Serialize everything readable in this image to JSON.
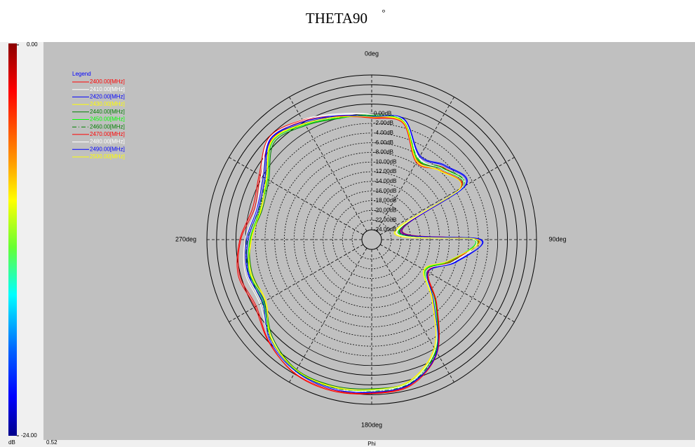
{
  "chart_data": {
    "type": "polar",
    "title": "THETA90",
    "title_superscript": "°",
    "legend_title": "Legend",
    "x_label": "Phi",
    "footer_value": "0.52",
    "colorbar_unit": "dB",
    "colorbar_ticks": [
      {
        "value": 0,
        "label": "0.00"
      },
      {
        "value": -24,
        "label": "-24.00"
      }
    ],
    "rlim": [
      -24,
      8
    ],
    "rticks": [
      {
        "value": 0,
        "label": "0.00dB"
      },
      {
        "value": -2,
        "label": "-2.00dB"
      },
      {
        "value": -4,
        "label": "-4.00dB"
      },
      {
        "value": -6,
        "label": "-6.00dB"
      },
      {
        "value": -8,
        "label": "-8.00dB"
      },
      {
        "value": -10,
        "label": "-10.00dB"
      },
      {
        "value": -12,
        "label": "-12.00dB"
      },
      {
        "value": -14,
        "label": "-14.00dB"
      },
      {
        "value": -16,
        "label": "-16.00dB"
      },
      {
        "value": -18,
        "label": "-18.00dB"
      },
      {
        "value": -20,
        "label": "-20.00dB"
      },
      {
        "value": -22,
        "label": "-22.00dB"
      },
      {
        "value": -24,
        "label": "-24.00dB"
      }
    ],
    "rgrid_outer": [
      2,
      4,
      6,
      8
    ],
    "angle_ticks": [
      {
        "value": 0,
        "label": "0deg"
      },
      {
        "value": 90,
        "label": "90deg"
      },
      {
        "value": 180,
        "label": "180deg"
      },
      {
        "value": 270,
        "label": "270deg"
      }
    ],
    "spokes": [
      0,
      30,
      60,
      90,
      120,
      150,
      180,
      210,
      240,
      270,
      300,
      330
    ],
    "direction": "clockwise",
    "x": [
      0,
      15,
      30,
      45,
      60,
      75,
      90,
      105,
      120,
      135,
      150,
      165,
      180,
      195,
      210,
      225,
      240,
      255,
      270,
      285,
      300,
      315,
      330,
      345
    ],
    "series": [
      {
        "name": "2400.00[MHz]",
        "color": "#ff0000",
        "dash": "solid",
        "values": [
          -0.8,
          -0.9,
          -7.2,
          -5.0,
          -4.8,
          -19.5,
          -4.0,
          -9.2,
          -12.5,
          -7.0,
          1.0,
          5.2,
          5.8,
          6.3,
          5.9,
          3.9,
          1.5,
          2.2,
          1.0,
          -1.0,
          0.5,
          3.2,
          2.3,
          0.2
        ]
      },
      {
        "name": "2410.00[MHz]",
        "color": "#ffffff",
        "dash": "solid",
        "values": [
          -0.1,
          -0.4,
          -6.5,
          -5.6,
          -4.2,
          -20.8,
          -4.6,
          -8.3,
          -13.2,
          -7.8,
          0.4,
          4.6,
          5.2,
          6.0,
          5.6,
          3.0,
          0.2,
          0.6,
          -0.3,
          -1.6,
          0.3,
          3.8,
          2.6,
          0.9
        ]
      },
      {
        "name": "2420.00[MHz]",
        "color": "#0000ff",
        "dash": "solid",
        "values": [
          -0.5,
          -0.3,
          -6.2,
          -4.6,
          -3.8,
          -20.0,
          -3.6,
          -8.0,
          -12.8,
          -7.6,
          0.9,
          4.8,
          5.6,
          5.7,
          5.3,
          3.3,
          -0.4,
          0.3,
          -0.5,
          -1.8,
          -0.6,
          3.4,
          1.8,
          0.4
        ]
      },
      {
        "name": "2430.00[MHz]",
        "color": "#ffff00",
        "dash": "solid",
        "values": [
          -0.6,
          -1.0,
          -7.4,
          -6.0,
          -5.0,
          -21.0,
          -4.5,
          -9.0,
          -13.5,
          -8.2,
          -0.2,
          4.2,
          5.0,
          5.4,
          5.0,
          3.1,
          -0.8,
          -0.2,
          -1.2,
          -2.4,
          -1.0,
          3.0,
          1.6,
          0.3
        ]
      },
      {
        "name": "2440.00[MHz]",
        "color": "#008000",
        "dash": "solid",
        "values": [
          -0.2,
          -0.5,
          -7.0,
          -5.5,
          -4.6,
          -20.5,
          -4.7,
          -8.8,
          -13.1,
          -7.3,
          0.5,
          4.4,
          4.8,
          5.2,
          5.0,
          2.8,
          -0.5,
          -0.4,
          -1.0,
          -2.6,
          -1.5,
          2.4,
          1.2,
          -0.1
        ]
      },
      {
        "name": "2450.00[MHz]",
        "color": "#00ff00",
        "dash": "solid",
        "values": [
          -0.4,
          -0.7,
          -6.9,
          -5.2,
          -4.4,
          -20.3,
          -4.9,
          -9.1,
          -13.3,
          -7.5,
          0.3,
          4.5,
          5.1,
          5.5,
          5.2,
          3.2,
          -0.2,
          0.1,
          -0.9,
          -2.2,
          -1.2,
          2.8,
          1.4,
          0.0
        ]
      },
      {
        "name": "2460.00[MHz]",
        "color": "#008000",
        "dash": "dashdot",
        "values": [
          -0.3,
          -0.6,
          -6.7,
          -5.1,
          -4.3,
          -20.1,
          -4.4,
          -8.6,
          -12.9,
          -7.2,
          0.6,
          4.7,
          5.3,
          5.6,
          5.3,
          3.4,
          0.1,
          0.4,
          -0.4,
          -1.9,
          -0.8,
          3.1,
          1.7,
          0.2
        ]
      },
      {
        "name": "2470.00[MHz]",
        "color": "#ff0000",
        "dash": "solid",
        "values": [
          -0.9,
          -1.1,
          -7.6,
          -5.8,
          -4.9,
          -19.8,
          -4.2,
          -8.9,
          -12.7,
          -7.1,
          0.8,
          5.0,
          5.7,
          6.1,
          5.8,
          4.0,
          1.8,
          2.5,
          1.2,
          -0.6,
          0.8,
          3.9,
          2.5,
          0.4
        ]
      },
      {
        "name": "2480.00[MHz]",
        "color": "#ffffff",
        "dash": "solid",
        "values": [
          -0.2,
          -0.5,
          -6.6,
          -5.4,
          -4.5,
          -20.6,
          -4.8,
          -8.5,
          -13.0,
          -7.7,
          0.2,
          4.5,
          5.2,
          5.8,
          5.4,
          3.5,
          0.6,
          1.0,
          0.1,
          -1.3,
          0.2,
          3.7,
          2.4,
          0.7
        ]
      },
      {
        "name": "2490.00[MHz]",
        "color": "#0000ff",
        "dash": "solid",
        "values": [
          -0.6,
          -0.2,
          -6.0,
          -4.4,
          -3.6,
          -19.6,
          -3.4,
          -8.2,
          -12.6,
          -7.9,
          0.8,
          4.9,
          5.5,
          5.9,
          5.4,
          3.6,
          0.0,
          0.5,
          -0.2,
          -1.5,
          -0.2,
          3.5,
          2.1,
          0.5
        ]
      },
      {
        "name": "2500.00[MHz]",
        "color": "#ffff00",
        "dash": "solid",
        "values": [
          -0.7,
          -0.8,
          -7.3,
          -5.9,
          -5.1,
          -21.2,
          -4.1,
          -9.4,
          -13.6,
          -8.4,
          -0.1,
          4.3,
          5.0,
          5.5,
          5.1,
          3.2,
          -0.6,
          0.0,
          -1.1,
          -2.3,
          -0.9,
          3.1,
          1.7,
          0.2
        ]
      }
    ]
  }
}
